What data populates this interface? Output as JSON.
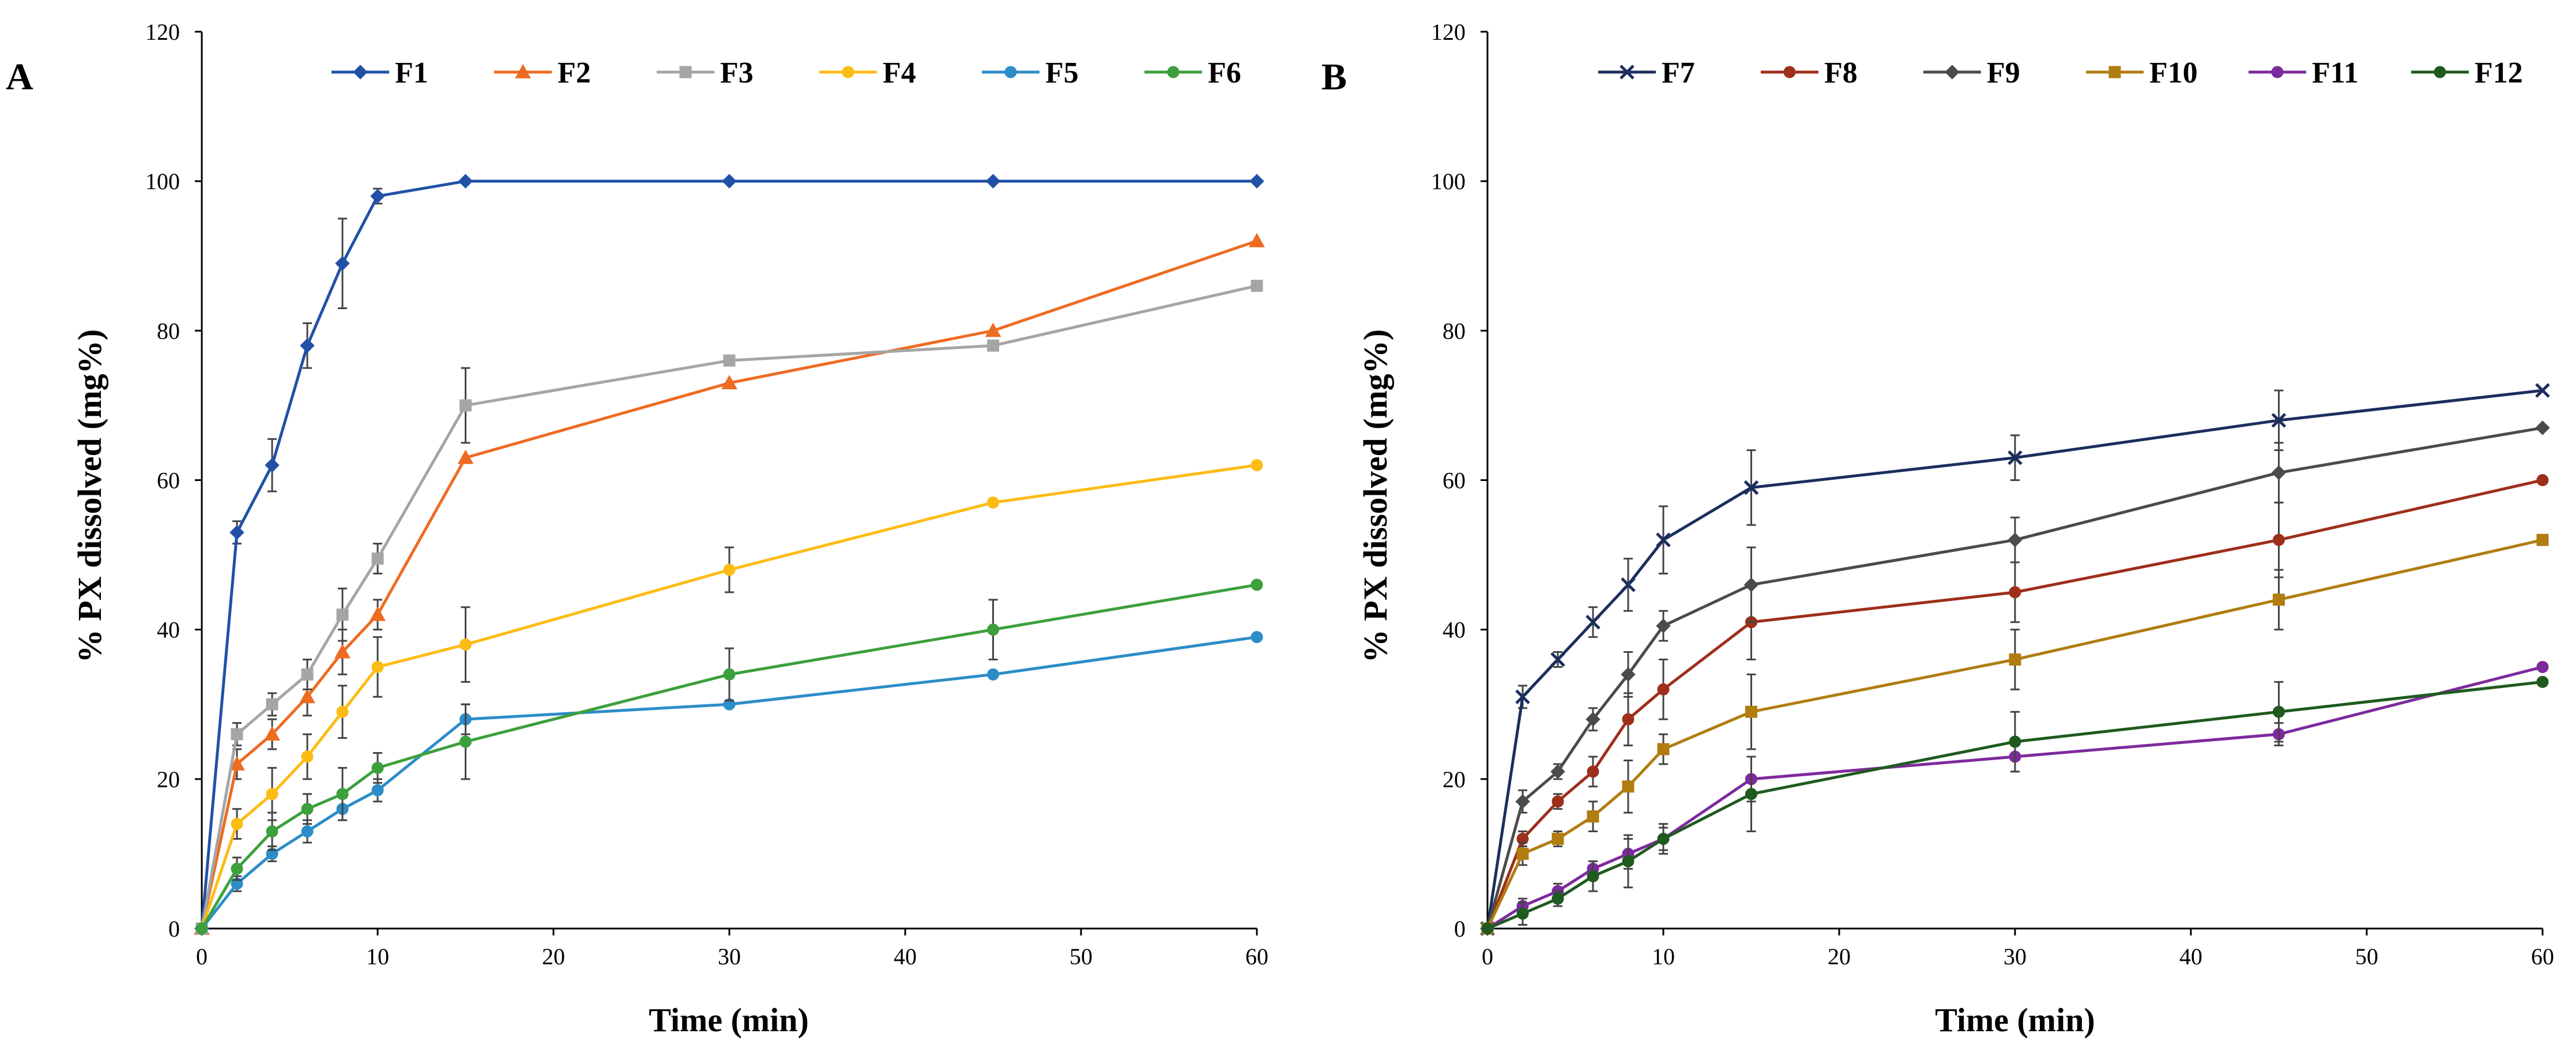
{
  "chart_data": [
    {
      "type": "line",
      "panel_label": "A",
      "title": "",
      "xlabel": "Time (min)",
      "ylabel": "% PX dissolved (mg%)",
      "xlim": [
        0,
        60
      ],
      "ylim": [
        0,
        120
      ],
      "xticks": [
        "0",
        "10",
        "20",
        "30",
        "40",
        "50",
        "60"
      ],
      "yticks": [
        "0",
        "20",
        "40",
        "60",
        "80",
        "100",
        "120"
      ],
      "legend_position": "top",
      "x": [
        0,
        2,
        4,
        6,
        8,
        10,
        15,
        30,
        45,
        60
      ],
      "series": [
        {
          "name": "F1",
          "color": "#2151a6",
          "marker": "diamond",
          "values": [
            0,
            53,
            62,
            78,
            89,
            98,
            100,
            100,
            100,
            100
          ],
          "errors": [
            0,
            1.5,
            3.5,
            3,
            6,
            1,
            0,
            0,
            0,
            0
          ]
        },
        {
          "name": "F2",
          "color": "#ee6b22",
          "marker": "triangle",
          "values": [
            0,
            22,
            26,
            31,
            37,
            42,
            63,
            73,
            80,
            92
          ],
          "errors": [
            0,
            2,
            2,
            2.5,
            3,
            2,
            0,
            0,
            0,
            0
          ]
        },
        {
          "name": "F3",
          "color": "#a5a5a5",
          "marker": "square",
          "values": [
            0,
            26,
            30,
            34,
            42,
            49.5,
            70,
            76,
            78,
            86
          ],
          "errors": [
            0,
            1.5,
            1.5,
            2,
            3.5,
            2,
            5,
            0,
            0,
            0
          ]
        },
        {
          "name": "F4",
          "color": "#fdbc14",
          "marker": "circle",
          "values": [
            0,
            14,
            18,
            23,
            29,
            35,
            38,
            48,
            57,
            62
          ],
          "errors": [
            0,
            2,
            3.5,
            3,
            3.5,
            4,
            5,
            3,
            0,
            0
          ]
        },
        {
          "name": "F5",
          "color": "#2d8dc8",
          "marker": "circle",
          "values": [
            0,
            6,
            10,
            13,
            16,
            18.5,
            28,
            30,
            34,
            39
          ],
          "errors": [
            0,
            1,
            1,
            1.5,
            1.5,
            1.5,
            2,
            0,
            0,
            0
          ]
        },
        {
          "name": "F6",
          "color": "#3ca03c",
          "marker": "circle",
          "values": [
            0,
            8,
            13,
            16,
            18,
            21.5,
            25,
            34,
            40,
            46
          ],
          "errors": [
            0,
            1.5,
            2.5,
            2,
            3.5,
            2,
            5,
            3.5,
            4,
            0
          ]
        }
      ]
    },
    {
      "type": "line",
      "panel_label": "B",
      "title": "",
      "xlabel": "Time (min)",
      "ylabel": "% PX dissolved (mg%)",
      "xlim": [
        0,
        60
      ],
      "ylim": [
        0,
        120
      ],
      "xticks": [
        "0",
        "10",
        "20",
        "30",
        "40",
        "50",
        "60"
      ],
      "yticks": [
        "0",
        "20",
        "40",
        "60",
        "80",
        "100",
        "120"
      ],
      "legend_position": "top",
      "x": [
        0,
        2,
        4,
        6,
        8,
        10,
        15,
        30,
        45,
        60
      ],
      "series": [
        {
          "name": "F7",
          "color": "#1c2e5e",
          "marker": "x",
          "values": [
            0,
            31,
            36,
            41,
            46,
            52,
            59,
            63,
            68,
            72
          ],
          "errors": [
            0,
            1.5,
            1,
            2,
            3.5,
            4.5,
            5,
            3,
            4,
            0
          ]
        },
        {
          "name": "F8",
          "color": "#9e2f1a",
          "marker": "circle",
          "values": [
            0,
            12,
            17,
            21,
            28,
            32,
            41,
            45,
            52,
            60
          ],
          "errors": [
            0,
            1,
            1,
            2,
            3.5,
            4,
            5,
            4,
            5,
            0
          ]
        },
        {
          "name": "F9",
          "color": "#4b4b4b",
          "marker": "diamond",
          "values": [
            0,
            17,
            21,
            28,
            34,
            40.5,
            46,
            52,
            61,
            67
          ],
          "errors": [
            0,
            1.5,
            1,
            1.5,
            3,
            2,
            5,
            3,
            4,
            0
          ]
        },
        {
          "name": "F10",
          "color": "#b07d10",
          "marker": "square",
          "values": [
            0,
            10,
            12,
            15,
            19,
            24,
            29,
            36,
            44,
            52
          ],
          "errors": [
            0,
            1.5,
            1,
            2,
            3.5,
            2,
            5,
            4,
            4,
            0
          ]
        },
        {
          "name": "F11",
          "color": "#7d2a9e",
          "marker": "circle",
          "values": [
            0,
            3,
            5,
            8,
            10,
            12,
            20,
            23,
            26,
            35
          ],
          "errors": [
            0,
            1,
            1,
            1,
            2,
            1.5,
            3,
            2,
            1.5,
            0
          ]
        },
        {
          "name": "F12",
          "color": "#1f5a1f",
          "marker": "circle",
          "values": [
            0,
            2,
            4,
            7,
            9,
            12,
            18,
            25,
            29,
            33
          ],
          "errors": [
            0,
            1.5,
            1,
            2,
            3.5,
            2,
            5,
            4,
            4,
            0
          ]
        }
      ]
    }
  ]
}
